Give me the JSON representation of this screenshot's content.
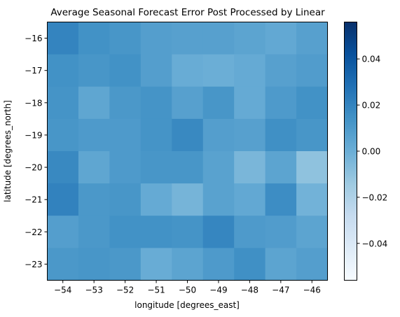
{
  "chart_data": {
    "type": "heatmap",
    "title": "Average Seasonal Forecast Error Post Processed by Linear",
    "xlabel": "longitude [degrees_east]",
    "ylabel": "latitude [degrees_north]",
    "x": [
      -54,
      -53,
      -52,
      -51,
      -50,
      -49,
      -48,
      -47,
      -46
    ],
    "y": [
      -16,
      -17,
      -18,
      -19,
      -20,
      -21,
      -22,
      -23
    ],
    "xticks": [
      "−54",
      "−53",
      "−52",
      "−51",
      "−50",
      "−49",
      "−48",
      "−47",
      "−46"
    ],
    "yticks": [
      "−16",
      "−17",
      "−18",
      "−19",
      "−20",
      "−21",
      "−22",
      "−23"
    ],
    "values": [
      [
        0.02,
        0.014,
        0.012,
        0.008,
        0.007,
        0.007,
        0.005,
        0.003,
        0.007
      ],
      [
        0.014,
        0.012,
        0.014,
        0.008,
        0.001,
        0.0,
        0.002,
        0.007,
        0.009
      ],
      [
        0.013,
        0.004,
        0.011,
        0.013,
        0.007,
        0.012,
        0.002,
        0.01,
        0.014
      ],
      [
        0.012,
        0.01,
        0.01,
        0.013,
        0.018,
        0.008,
        0.007,
        0.015,
        0.012
      ],
      [
        0.018,
        0.004,
        0.01,
        0.012,
        0.012,
        0.006,
        -0.004,
        0.005,
        -0.01
      ],
      [
        0.021,
        0.011,
        0.012,
        0.002,
        -0.003,
        0.006,
        0.003,
        0.016,
        -0.002
      ],
      [
        0.008,
        0.011,
        0.014,
        0.014,
        0.013,
        0.019,
        0.01,
        0.009,
        0.005
      ],
      [
        0.011,
        0.012,
        0.011,
        0.001,
        0.005,
        0.01,
        0.015,
        0.005,
        0.008
      ]
    ],
    "vmin": -0.056,
    "vmax": 0.056,
    "colormap": "Blues",
    "colorbar_ticks": [
      0.04,
      0.02,
      0.0,
      -0.02,
      -0.04
    ],
    "colorbar_tick_labels": [
      "0.04",
      "0.02",
      "0.00",
      "−0.02",
      "−0.04"
    ]
  }
}
